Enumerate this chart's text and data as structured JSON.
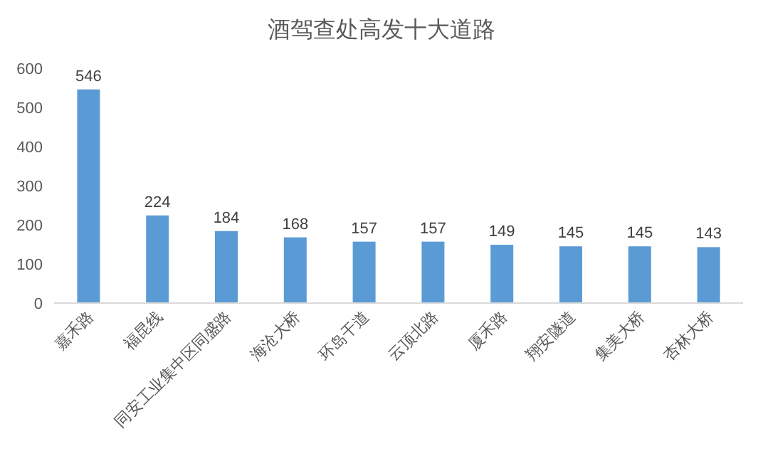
{
  "chart_data": {
    "type": "bar",
    "title": "酒驾查处高发十大道路",
    "categories": [
      "嘉禾路",
      "福昆线",
      "同安工业集中区同盛路",
      "海沧大桥",
      "环岛干道",
      "云顶北路",
      "厦禾路",
      "翔安隧道",
      "集美大桥",
      "杏林大桥"
    ],
    "values": [
      546,
      224,
      184,
      168,
      157,
      157,
      149,
      145,
      145,
      143
    ],
    "color": "#5b9bd5",
    "ylim": [
      0,
      600
    ],
    "yticks": [
      0,
      100,
      200,
      300,
      400,
      500,
      600
    ],
    "data_labels": true,
    "grid": false,
    "legend": false
  }
}
